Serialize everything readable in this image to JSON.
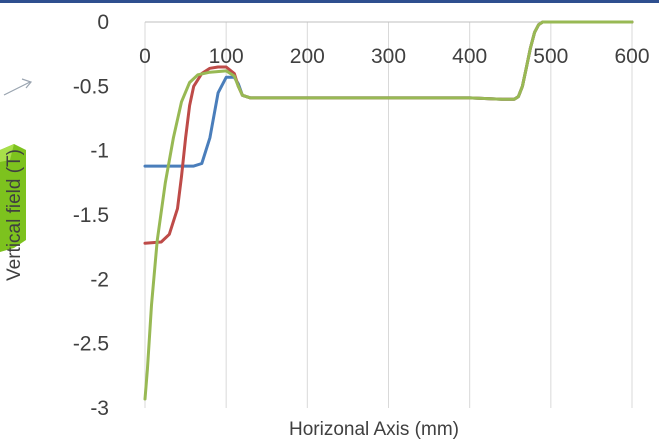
{
  "chart_data": {
    "type": "line",
    "title": "",
    "xlabel": "Horizonal Axis (mm)",
    "ylabel": "Vertical field (T)",
    "xlim": [
      0,
      600
    ],
    "ylim": [
      -3,
      0
    ],
    "x_ticks": [
      0,
      100,
      200,
      300,
      400,
      500,
      600
    ],
    "y_ticks": [
      0,
      -0.5,
      -1,
      -1.5,
      -2,
      -2.5,
      -3
    ],
    "x_tick_labels": [
      "0",
      "100",
      "200",
      "300",
      "400",
      "500",
      "600"
    ],
    "y_tick_labels": [
      "0",
      "-0.5",
      "-1",
      "-1.5",
      "-2",
      "-2.5",
      "-3"
    ],
    "grid": {
      "vertical": true,
      "horizontal": false
    },
    "legend": "none",
    "series": [
      {
        "color": "#4a7ebb",
        "x": [
          0,
          40,
          60,
          70,
          80,
          90,
          100,
          110,
          115,
          120,
          130,
          150,
          200,
          300,
          400,
          440,
          455,
          460,
          465,
          470,
          475,
          480,
          485,
          490,
          500,
          600
        ],
        "y": [
          -1.12,
          -1.12,
          -1.12,
          -1.1,
          -0.9,
          -0.55,
          -0.43,
          -0.43,
          -0.48,
          -0.57,
          -0.59,
          -0.59,
          -0.59,
          -0.59,
          -0.59,
          -0.6,
          -0.6,
          -0.58,
          -0.5,
          -0.35,
          -0.2,
          -0.08,
          -0.02,
          0,
          0,
          0
        ]
      },
      {
        "color": "#be4b48",
        "x": [
          0,
          20,
          30,
          40,
          45,
          50,
          55,
          60,
          70,
          80,
          90,
          100,
          110,
          115,
          120,
          130,
          150,
          200,
          300,
          400,
          440,
          455,
          460,
          465,
          470,
          475,
          480,
          485,
          490,
          500,
          600
        ],
        "y": [
          -1.72,
          -1.71,
          -1.65,
          -1.45,
          -1.2,
          -0.9,
          -0.65,
          -0.5,
          -0.4,
          -0.36,
          -0.35,
          -0.35,
          -0.4,
          -0.5,
          -0.57,
          -0.59,
          -0.59,
          -0.59,
          -0.59,
          -0.59,
          -0.6,
          -0.6,
          -0.58,
          -0.5,
          -0.35,
          -0.2,
          -0.08,
          -0.02,
          0,
          0,
          0
        ]
      },
      {
        "color": "#98b954",
        "x": [
          0,
          3,
          8,
          15,
          25,
          35,
          45,
          55,
          65,
          80,
          100,
          110,
          115,
          120,
          130,
          150,
          200,
          300,
          400,
          440,
          455,
          460,
          465,
          470,
          475,
          480,
          485,
          490,
          500,
          600
        ],
        "y": [
          -2.93,
          -2.7,
          -2.2,
          -1.7,
          -1.25,
          -0.9,
          -0.62,
          -0.47,
          -0.41,
          -0.39,
          -0.38,
          -0.42,
          -0.5,
          -0.57,
          -0.59,
          -0.59,
          -0.59,
          -0.59,
          -0.59,
          -0.6,
          -0.6,
          -0.58,
          -0.5,
          -0.35,
          -0.2,
          -0.08,
          -0.02,
          0,
          0,
          0
        ]
      }
    ]
  }
}
